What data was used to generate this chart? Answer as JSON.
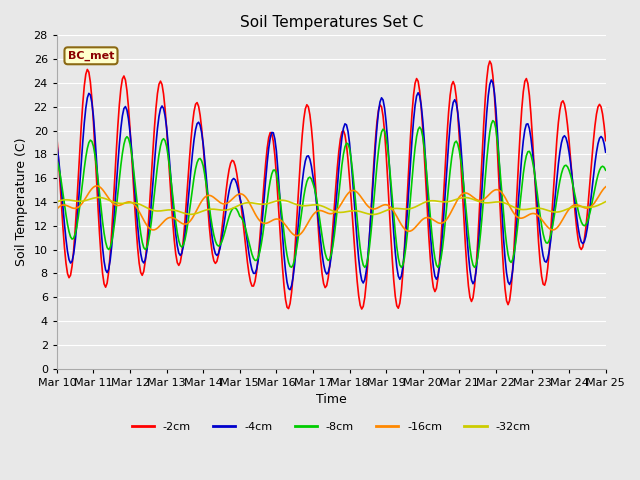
{
  "title": "Soil Temperatures Set C",
  "xlabel": "Time",
  "ylabel": "Soil Temperature (C)",
  "ylim": [
    0,
    28
  ],
  "yticks": [
    0,
    2,
    4,
    6,
    8,
    10,
    12,
    14,
    16,
    18,
    20,
    22,
    24,
    26,
    28
  ],
  "xlim": [
    0,
    360
  ],
  "xtick_positions": [
    0,
    24,
    48,
    72,
    96,
    120,
    144,
    168,
    192,
    216,
    240,
    264,
    288,
    312,
    336,
    360
  ],
  "xtick_labels": [
    "Mar 10",
    "Mar 11",
    "Mar 12",
    "Mar 13",
    "Mar 14",
    "Mar 15",
    "Mar 16",
    "Mar 17",
    "Mar 18",
    "Mar 19",
    "Mar 20",
    "Mar 21",
    "Mar 22",
    "Mar 23",
    "Mar 24",
    "Mar 25"
  ],
  "series_colors": [
    "#ff0000",
    "#0000cc",
    "#00cc00",
    "#ff8800",
    "#cccc00"
  ],
  "series_labels": [
    "-2cm",
    "-4cm",
    "-8cm",
    "-16cm",
    "-32cm"
  ],
  "annotation_text": "BC_met",
  "background_color": "#e8e8e8",
  "plot_bg_color": "#e8e8e8",
  "grid_color": "#ffffff",
  "title_fontsize": 11
}
